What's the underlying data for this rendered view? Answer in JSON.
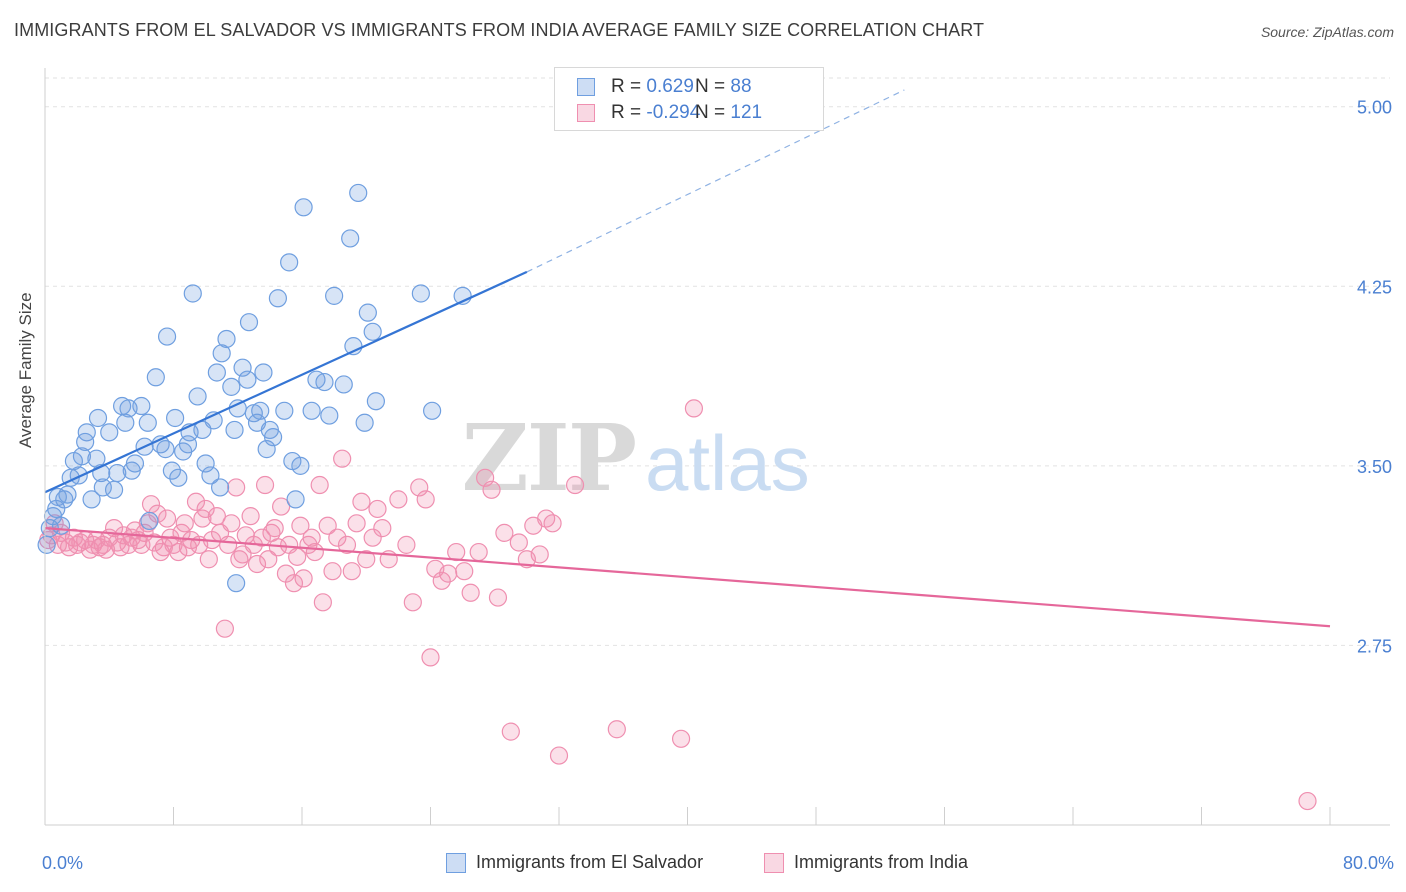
{
  "header": {
    "title": "IMMIGRANTS FROM EL SALVADOR VS IMMIGRANTS FROM INDIA AVERAGE FAMILY SIZE CORRELATION CHART",
    "source": "Source: ZipAtlas.com"
  },
  "watermark": {
    "zip": "ZIP",
    "atlas": "atlas"
  },
  "legend": {
    "rows": [
      {
        "r_label": "R =",
        "r_value": "0.629",
        "n_label": "N =",
        "n_value": "88"
      },
      {
        "r_label": "R =",
        "r_value": "-0.294",
        "n_label": "N =",
        "n_value": "121"
      }
    ]
  },
  "colors": {
    "blue": "#6f9fe0",
    "blue_fill": "rgba(111,159,224,0.28)",
    "blue_line": "#3575d4",
    "pink": "#ef8fb0",
    "pink_fill": "rgba(239,143,176,0.28)",
    "pink_line": "#e5679a",
    "axis_text": "#4a7fd1",
    "grid": "#e2e2e2"
  },
  "chart_data": {
    "type": "scatter",
    "title": "IMMIGRANTS FROM EL SALVADOR VS IMMIGRANTS FROM INDIA AVERAGE FAMILY SIZE CORRELATION CHART",
    "xlabel": "",
    "ylabel": "Average Family Size",
    "x_ticks_labels": [
      "0.0%",
      "80.0%"
    ],
    "y_ticks": [
      2.75,
      3.5,
      4.25,
      5.0
    ],
    "y_tick_labels": [
      "2.75",
      "3.50",
      "4.25",
      "5.00"
    ],
    "xlim": [
      0,
      80
    ],
    "ylim": [
      2.0,
      5.12
    ],
    "grid": "horizontal dashed",
    "legend_position": "bottom",
    "series": [
      {
        "name": "Immigrants from El Salvador",
        "color": "#6f9fe0",
        "R": 0.629,
        "N": 88,
        "trend": {
          "x": [
            0,
            30
          ],
          "y": [
            3.39,
            4.31
          ],
          "dashed_to": [
            53.5,
            5.07
          ]
        },
        "points": [
          [
            0.1,
            3.17
          ],
          [
            0.3,
            3.24
          ],
          [
            0.5,
            3.29
          ],
          [
            0.7,
            3.32
          ],
          [
            0.8,
            3.37
          ],
          [
            1.0,
            3.25
          ],
          [
            1.2,
            3.36
          ],
          [
            1.4,
            3.38
          ],
          [
            1.6,
            3.45
          ],
          [
            1.8,
            3.52
          ],
          [
            2.1,
            3.46
          ],
          [
            2.3,
            3.54
          ],
          [
            2.6,
            3.64
          ],
          [
            2.9,
            3.36
          ],
          [
            3.2,
            3.53
          ],
          [
            3.3,
            3.7
          ],
          [
            3.5,
            3.47
          ],
          [
            4.0,
            3.64
          ],
          [
            4.3,
            3.4
          ],
          [
            4.5,
            3.47
          ],
          [
            4.8,
            3.75
          ],
          [
            5.0,
            3.68
          ],
          [
            5.2,
            3.74
          ],
          [
            5.4,
            3.48
          ],
          [
            5.6,
            3.51
          ],
          [
            6.0,
            3.75
          ],
          [
            6.2,
            3.58
          ],
          [
            6.4,
            3.68
          ],
          [
            6.9,
            3.87
          ],
          [
            7.2,
            3.59
          ],
          [
            7.5,
            3.57
          ],
          [
            7.6,
            4.04
          ],
          [
            7.9,
            3.48
          ],
          [
            8.1,
            3.7
          ],
          [
            8.3,
            3.45
          ],
          [
            8.6,
            3.56
          ],
          [
            8.9,
            3.59
          ],
          [
            9.0,
            3.64
          ],
          [
            9.2,
            4.22
          ],
          [
            9.5,
            3.79
          ],
          [
            9.8,
            3.65
          ],
          [
            10.0,
            3.51
          ],
          [
            10.3,
            3.46
          ],
          [
            10.5,
            3.69
          ],
          [
            10.7,
            3.89
          ],
          [
            10.9,
            3.41
          ],
          [
            11.0,
            3.97
          ],
          [
            11.3,
            4.03
          ],
          [
            11.6,
            3.83
          ],
          [
            11.8,
            3.65
          ],
          [
            12.0,
            3.74
          ],
          [
            12.3,
            3.91
          ],
          [
            12.6,
            3.86
          ],
          [
            12.7,
            4.1
          ],
          [
            13.0,
            3.72
          ],
          [
            13.2,
            3.68
          ],
          [
            13.4,
            3.73
          ],
          [
            13.6,
            3.89
          ],
          [
            13.8,
            3.57
          ],
          [
            14.0,
            3.65
          ],
          [
            14.2,
            3.62
          ],
          [
            14.5,
            4.2
          ],
          [
            14.9,
            3.73
          ],
          [
            15.2,
            4.35
          ],
          [
            15.4,
            3.52
          ],
          [
            15.6,
            3.36
          ],
          [
            15.9,
            3.5
          ],
          [
            16.1,
            4.58
          ],
          [
            16.6,
            3.73
          ],
          [
            16.9,
            3.86
          ],
          [
            17.4,
            3.85
          ],
          [
            17.7,
            3.71
          ],
          [
            18.0,
            4.21
          ],
          [
            18.6,
            3.84
          ],
          [
            19.0,
            4.45
          ],
          [
            19.2,
            4.0
          ],
          [
            19.5,
            4.64
          ],
          [
            19.9,
            3.68
          ],
          [
            20.1,
            4.14
          ],
          [
            20.4,
            4.06
          ],
          [
            20.6,
            3.77
          ],
          [
            23.4,
            4.22
          ],
          [
            24.1,
            3.73
          ],
          [
            26.0,
            4.21
          ],
          [
            11.9,
            3.01
          ],
          [
            6.5,
            3.27
          ],
          [
            2.5,
            3.6
          ],
          [
            3.6,
            3.41
          ]
        ]
      },
      {
        "name": "Immigrants from India",
        "color": "#ef8fb0",
        "R": -0.294,
        "N": 121,
        "trend": {
          "x": [
            0,
            80
          ],
          "y": [
            3.24,
            2.83
          ]
        },
        "points": [
          [
            0.2,
            3.19
          ],
          [
            0.4,
            3.21
          ],
          [
            0.6,
            3.26
          ],
          [
            0.8,
            3.17
          ],
          [
            1.0,
            3.22
          ],
          [
            1.3,
            3.18
          ],
          [
            1.5,
            3.16
          ],
          [
            1.8,
            3.2
          ],
          [
            2.0,
            3.17
          ],
          [
            2.2,
            3.18
          ],
          [
            2.5,
            3.19
          ],
          [
            2.8,
            3.15
          ],
          [
            3.0,
            3.17
          ],
          [
            3.2,
            3.19
          ],
          [
            3.4,
            3.16
          ],
          [
            3.6,
            3.17
          ],
          [
            3.8,
            3.15
          ],
          [
            4.0,
            3.2
          ],
          [
            4.3,
            3.24
          ],
          [
            4.5,
            3.18
          ],
          [
            4.7,
            3.16
          ],
          [
            4.9,
            3.21
          ],
          [
            5.2,
            3.17
          ],
          [
            5.4,
            3.2
          ],
          [
            5.6,
            3.23
          ],
          [
            5.8,
            3.19
          ],
          [
            6.0,
            3.17
          ],
          [
            6.2,
            3.22
          ],
          [
            6.4,
            3.26
          ],
          [
            6.6,
            3.34
          ],
          [
            6.8,
            3.18
          ],
          [
            7.0,
            3.3
          ],
          [
            7.2,
            3.14
          ],
          [
            7.4,
            3.16
          ],
          [
            7.6,
            3.28
          ],
          [
            7.8,
            3.2
          ],
          [
            8.0,
            3.17
          ],
          [
            8.3,
            3.14
          ],
          [
            8.5,
            3.22
          ],
          [
            8.7,
            3.26
          ],
          [
            8.9,
            3.16
          ],
          [
            9.1,
            3.19
          ],
          [
            9.4,
            3.35
          ],
          [
            9.6,
            3.17
          ],
          [
            9.8,
            3.28
          ],
          [
            10.0,
            3.32
          ],
          [
            10.2,
            3.11
          ],
          [
            10.4,
            3.19
          ],
          [
            10.7,
            3.29
          ],
          [
            10.9,
            3.22
          ],
          [
            11.2,
            2.82
          ],
          [
            11.4,
            3.17
          ],
          [
            11.6,
            3.26
          ],
          [
            11.9,
            3.41
          ],
          [
            12.1,
            3.11
          ],
          [
            12.3,
            3.13
          ],
          [
            12.5,
            3.21
          ],
          [
            12.8,
            3.29
          ],
          [
            13.0,
            3.17
          ],
          [
            13.2,
            3.09
          ],
          [
            13.5,
            3.2
          ],
          [
            13.7,
            3.42
          ],
          [
            13.9,
            3.11
          ],
          [
            14.1,
            3.22
          ],
          [
            14.3,
            3.24
          ],
          [
            14.5,
            3.16
          ],
          [
            14.7,
            3.33
          ],
          [
            15.0,
            3.05
          ],
          [
            15.2,
            3.17
          ],
          [
            15.5,
            3.01
          ],
          [
            15.7,
            3.12
          ],
          [
            15.9,
            3.25
          ],
          [
            16.1,
            3.03
          ],
          [
            16.4,
            3.17
          ],
          [
            16.6,
            3.2
          ],
          [
            16.8,
            3.14
          ],
          [
            17.1,
            3.42
          ],
          [
            17.3,
            2.93
          ],
          [
            17.6,
            3.25
          ],
          [
            17.9,
            3.06
          ],
          [
            18.2,
            3.2
          ],
          [
            18.5,
            3.53
          ],
          [
            18.8,
            3.17
          ],
          [
            19.1,
            3.06
          ],
          [
            19.4,
            3.26
          ],
          [
            19.7,
            3.35
          ],
          [
            20.0,
            3.11
          ],
          [
            20.4,
            3.2
          ],
          [
            20.7,
            3.32
          ],
          [
            21.0,
            3.24
          ],
          [
            21.4,
            3.11
          ],
          [
            22.0,
            3.36
          ],
          [
            22.5,
            3.17
          ],
          [
            22.9,
            2.93
          ],
          [
            23.3,
            3.41
          ],
          [
            23.7,
            3.36
          ],
          [
            24.0,
            2.7
          ],
          [
            24.3,
            3.07
          ],
          [
            24.7,
            3.02
          ],
          [
            25.1,
            3.05
          ],
          [
            25.6,
            3.14
          ],
          [
            26.1,
            3.06
          ],
          [
            26.5,
            2.97
          ],
          [
            27.0,
            3.14
          ],
          [
            27.4,
            3.45
          ],
          [
            27.8,
            3.4
          ],
          [
            28.2,
            2.95
          ],
          [
            28.6,
            3.22
          ],
          [
            29.0,
            2.39
          ],
          [
            29.5,
            3.18
          ],
          [
            30.0,
            3.11
          ],
          [
            30.4,
            3.25
          ],
          [
            30.8,
            3.13
          ],
          [
            31.2,
            3.28
          ],
          [
            31.6,
            3.26
          ],
          [
            32.0,
            2.29
          ],
          [
            33.0,
            3.42
          ],
          [
            35.6,
            2.4
          ],
          [
            40.4,
            3.74
          ],
          [
            39.6,
            2.36
          ],
          [
            78.6,
            2.1
          ]
        ]
      }
    ]
  }
}
